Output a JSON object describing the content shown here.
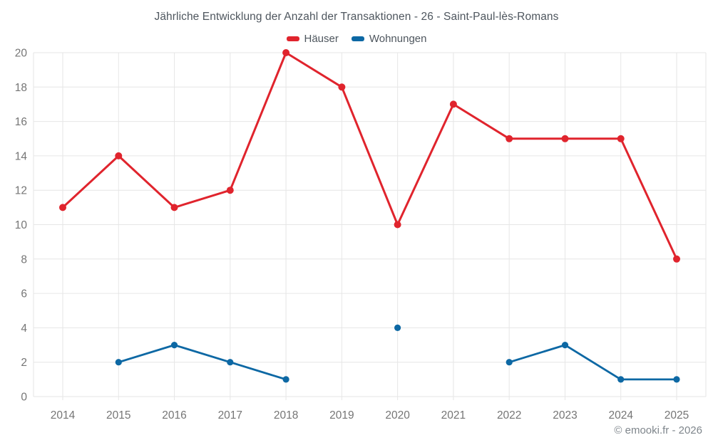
{
  "title": "Jährliche Entwicklung der Anzahl der Transaktionen - 26 - Saint-Paul-lès-Romans",
  "legend": {
    "items": [
      {
        "label": "Häuser",
        "color": "#e0242d"
      },
      {
        "label": "Wohnungen",
        "color": "#0d68a4"
      }
    ]
  },
  "footer": {
    "copyright": "© emooki.fr - 2026"
  },
  "chart_data": {
    "type": "line",
    "title": "Jährliche Entwicklung der Anzahl der Transaktionen - 26 - Saint-Paul-lès-Romans",
    "x": [
      "2014",
      "2015",
      "2016",
      "2017",
      "2018",
      "2019",
      "2020",
      "2021",
      "2022",
      "2023",
      "2024",
      "2025"
    ],
    "series": [
      {
        "name": "Häuser",
        "color": "#e0242d",
        "values": [
          11,
          14,
          11,
          12,
          20,
          18,
          10,
          17,
          15,
          15,
          15,
          8
        ]
      },
      {
        "name": "Wohnungen",
        "color": "#0d68a4",
        "values": [
          null,
          2,
          3,
          2,
          1,
          null,
          4,
          null,
          2,
          3,
          1,
          1
        ]
      }
    ],
    "ylim": [
      0,
      20
    ],
    "ytick_step": 2,
    "grid": true,
    "legend_position": "top",
    "grid_color": "#e6e6e6",
    "axis_label_color": "#757575"
  }
}
